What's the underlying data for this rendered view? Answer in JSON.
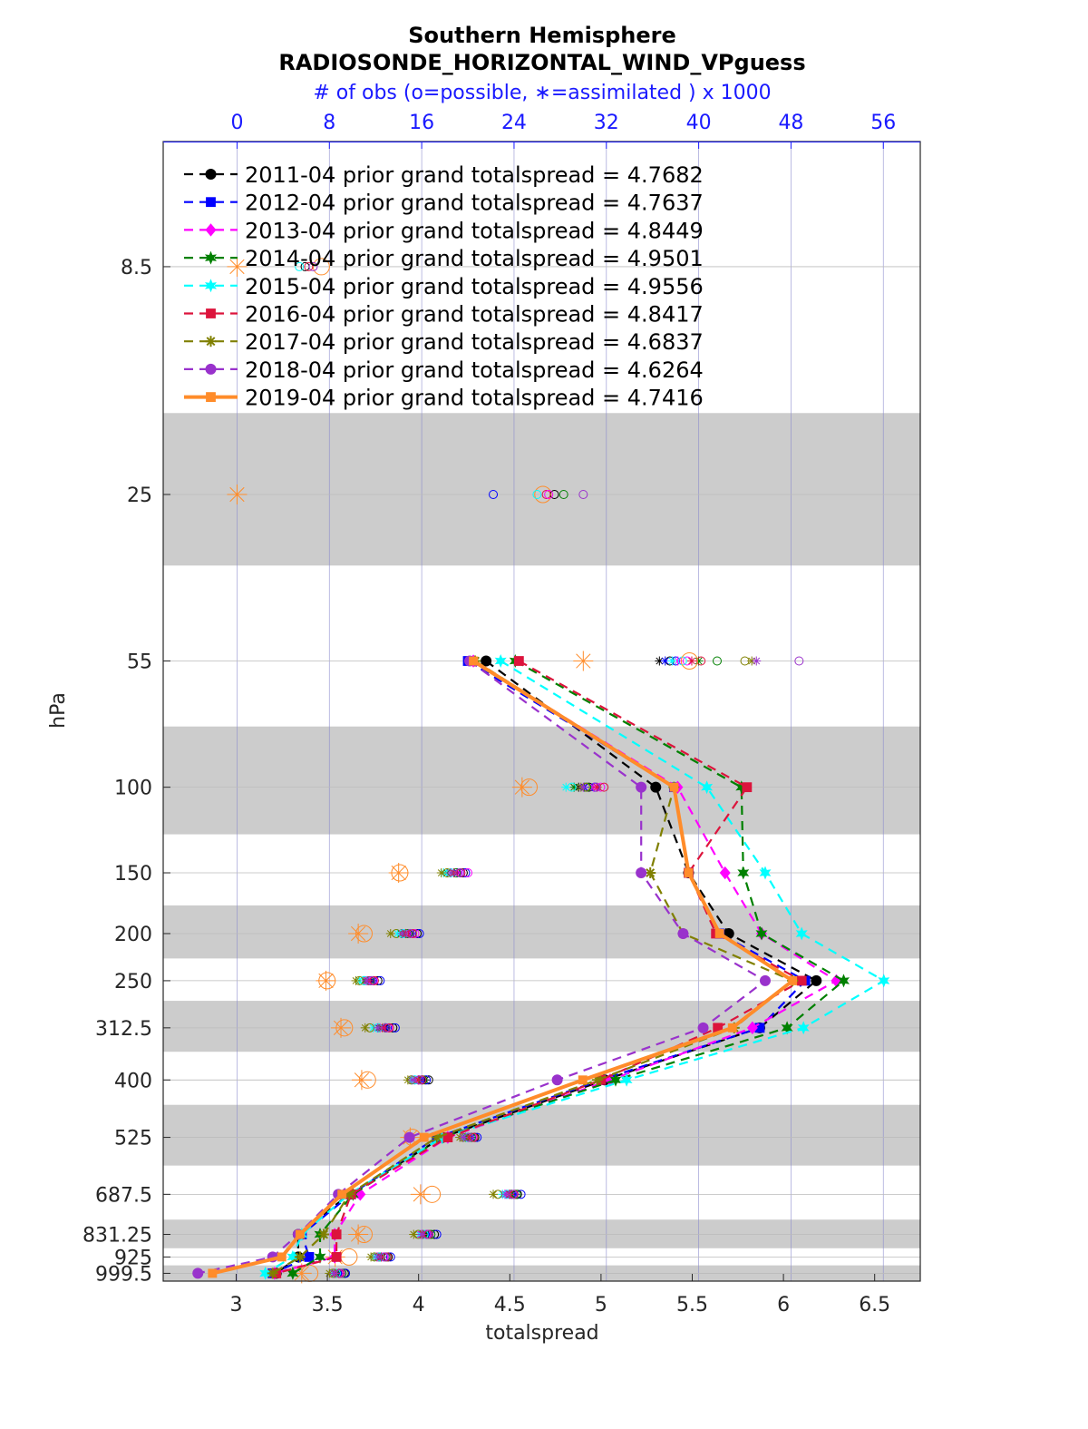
{
  "chart_data": {
    "type": "line",
    "title": "Southern Hemisphere",
    "subtitle": "RADIOSONDE_HORIZONTAL_WIND_VPguess",
    "top_axis_label": "# of obs (o=possible, ∗=assimilated ) x 1000",
    "xlabel": "totalspread",
    "ylabel": "hPa",
    "xlim": [
      2.6,
      6.75
    ],
    "top_xlim": [
      -6.4,
      59.2
    ],
    "x_ticks": [
      3,
      3.5,
      4,
      4.5,
      5,
      5.5,
      6,
      6.5
    ],
    "x_tick_labels": [
      "3",
      "3.5",
      "4",
      "4.5",
      "5",
      "5.5",
      "6",
      "6.5"
    ],
    "top_ticks": [
      0,
      8,
      16,
      24,
      32,
      40,
      48,
      56
    ],
    "top_tick_labels": [
      "0",
      "8",
      "16",
      "24",
      "32",
      "40",
      "48",
      "56"
    ],
    "levels": [
      8.5,
      25,
      55,
      100,
      150,
      200,
      250,
      312.5,
      400,
      525,
      687.5,
      831.25,
      925,
      999.5
    ],
    "level_labels": [
      "8.5",
      "25",
      "55",
      "100",
      "150",
      "200",
      "250",
      "312.5",
      "400",
      "525",
      "687.5",
      "831.25",
      "925",
      "999.5"
    ],
    "shaded_layers": [
      [
        17,
        35
      ],
      [
        75,
        125
      ],
      [
        175,
        225
      ],
      [
        275,
        350
      ],
      [
        450,
        600
      ],
      [
        775,
        887.5
      ],
      [
        962.5,
        1037
      ]
    ],
    "legend_location": "top-left",
    "series": [
      {
        "name": "2011-04",
        "label": "2011-04 prior grand totalspread = 4.7682",
        "color": "#000000",
        "marker": "circle",
        "style": "dashed",
        "values": [
          null,
          null,
          4.37,
          5.3,
          5.48,
          5.7,
          6.18,
          5.87,
          5.02,
          4.13,
          3.62,
          3.34,
          3.34,
          3.22
        ],
        "obs_possible": [
          null,
          null,
          37.5,
          30.5,
          19.6,
          15.6,
          12.2,
          13.5,
          16.6,
          20.6,
          24.3,
          17.1,
          13.1,
          9.3
        ],
        "obs_assimilated": [
          null,
          null,
          36.6,
          29.6,
          18.8,
          14.6,
          11.6,
          12.8,
          16.3,
          20.0,
          23.8,
          16.4,
          12.3,
          8.8
        ]
      },
      {
        "name": "2012-04",
        "label": "2012-04 prior grand totalspread = 4.7637",
        "color": "#0000ff",
        "marker": "square",
        "style": "dashed",
        "values": [
          null,
          null,
          4.27,
          5.4,
          5.48,
          5.65,
          6.12,
          5.87,
          5.0,
          4.1,
          3.63,
          3.36,
          3.4,
          3.2
        ],
        "obs_possible": [
          null,
          null,
          38.0,
          31.0,
          19.8,
          15.8,
          12.4,
          13.7,
          16.4,
          20.8,
          24.6,
          17.3,
          13.3,
          9.4
        ],
        "obs_assimilated": [
          null,
          null,
          37.1,
          30.1,
          19.1,
          15.0,
          11.8,
          12.9,
          16.0,
          20.3,
          24.1,
          16.6,
          12.5,
          8.9
        ]
      },
      {
        "name": "2013-04",
        "label": "2013-04 prior grand totalspread = 4.8449",
        "color": "#ff00ff",
        "marker": "diamond",
        "style": "dashed",
        "values": [
          null,
          null,
          4.3,
          5.42,
          5.68,
          5.88,
          6.29,
          5.83,
          5.05,
          4.16,
          3.68,
          3.54,
          3.54,
          3.21
        ],
        "obs_possible": [
          null,
          null,
          39.0,
          31.5,
          20.0,
          15.4,
          11.8,
          13.1,
          15.8,
          20.4,
          23.6,
          16.4,
          12.7,
          8.8
        ],
        "obs_assimilated": [
          null,
          null,
          38.2,
          30.9,
          19.3,
          14.8,
          11.3,
          12.4,
          15.4,
          19.9,
          23.2,
          15.9,
          12.1,
          8.4
        ]
      },
      {
        "name": "2014-04",
        "label": "2014-04 prior grand totalspread = 4.9501",
        "color": "#008000",
        "marker": "hexagram",
        "style": "dashed",
        "values": [
          null,
          null,
          4.53,
          5.77,
          5.78,
          5.88,
          6.33,
          6.02,
          5.08,
          4.13,
          3.64,
          3.46,
          3.46,
          3.31
        ],
        "obs_possible": [
          null,
          null,
          41.6,
          30.3,
          19.0,
          14.8,
          11.5,
          12.9,
          16.1,
          20.3,
          24.2,
          16.8,
          12.9,
          9.1
        ],
        "obs_assimilated": [
          null,
          null,
          40.0,
          29.2,
          18.2,
          14.2,
          11.0,
          12.3,
          15.7,
          19.8,
          23.7,
          16.2,
          12.4,
          8.6
        ]
      },
      {
        "name": "2015-04",
        "label": "2015-04 prior grand totalspread = 4.9556",
        "color": "#00ffff",
        "marker": "hexagram",
        "style": "dashed",
        "values": [
          null,
          null,
          4.45,
          5.58,
          5.9,
          6.1,
          6.55,
          6.11,
          5.14,
          4.13,
          3.62,
          3.36,
          3.31,
          3.16
        ],
        "obs_possible": [
          null,
          null,
          38.6,
          29.0,
          18.5,
          14.4,
          11.0,
          12.2,
          15.4,
          19.9,
          23.4,
          16.2,
          12.4,
          8.6
        ],
        "obs_assimilated": [
          null,
          null,
          37.7,
          28.5,
          17.9,
          13.9,
          10.6,
          11.8,
          15.1,
          19.6,
          23.0,
          15.8,
          11.9,
          8.3
        ]
      },
      {
        "name": "2016-04",
        "label": "2016-04 prior grand totalspread = 4.8417",
        "color": "#dc143c",
        "marker": "square",
        "style": "dashed",
        "values": [
          null,
          null,
          4.55,
          5.8,
          5.48,
          5.63,
          6.1,
          5.64,
          5.0,
          4.16,
          3.63,
          3.55,
          3.55,
          3.22
        ],
        "obs_possible": [
          null,
          null,
          40.2,
          31.8,
          19.4,
          15.2,
          11.9,
          13.2,
          16.0,
          20.5,
          24.0,
          16.6,
          13.0,
          8.9
        ],
        "obs_assimilated": [
          null,
          null,
          39.4,
          31.2,
          18.8,
          14.6,
          11.4,
          12.6,
          15.7,
          20.1,
          23.6,
          16.1,
          12.5,
          8.5
        ]
      },
      {
        "name": "2017-04",
        "label": "2017-04 prior grand totalspread = 4.6837",
        "color": "#808000",
        "marker": "asterisk",
        "style": "dashed",
        "values": [
          null,
          null,
          4.31,
          5.4,
          5.27,
          5.45,
          6.05,
          5.73,
          4.98,
          4.1,
          3.62,
          3.48,
          3.35,
          3.2
        ],
        "obs_possible": [
          null,
          null,
          44.0,
          30.2,
          18.2,
          13.8,
          10.6,
          11.5,
          15.1,
          19.6,
          22.6,
          15.7,
          11.9,
          8.3
        ],
        "obs_assimilated": [
          null,
          null,
          44.6,
          29.8,
          17.7,
          13.3,
          10.3,
          11.1,
          14.8,
          19.3,
          22.2,
          15.3,
          11.6,
          8.0
        ]
      },
      {
        "name": "2018-04",
        "label": "2018-04 prior grand totalspread = 4.6264",
        "color": "#9932cc",
        "marker": "circle",
        "style": "dashed",
        "values": [
          null,
          null,
          4.28,
          5.22,
          5.22,
          5.45,
          5.9,
          5.56,
          4.76,
          3.95,
          3.56,
          3.34,
          3.2,
          2.79
        ],
        "obs_possible": [
          null,
          null,
          48.7,
          31.1,
          19.3,
          15.0,
          11.6,
          12.9,
          15.8,
          20.1,
          23.9,
          16.5,
          12.8,
          9.0
        ],
        "obs_assimilated": [
          null,
          null,
          45.0,
          30.0,
          18.5,
          14.3,
          11.2,
          12.2,
          15.2,
          19.6,
          23.3,
          16.0,
          12.2,
          8.4
        ]
      },
      {
        "name": "2019-04",
        "label": "2019-04 prior grand totalspread = 4.7416",
        "color": "#ff8c2a",
        "marker": "square",
        "style": "solid",
        "values": [
          null,
          null,
          4.3,
          5.4,
          5.48,
          5.65,
          6.05,
          5.72,
          4.9,
          4.03,
          3.58,
          3.35,
          3.25,
          2.87
        ],
        "obs_possible": [
          7.3,
          26.5,
          39.2,
          25.3,
          14.1,
          11.0,
          7.8,
          9.3,
          11.3,
          15.2,
          16.9,
          11.0,
          9.7,
          6.3
        ],
        "obs_assimilated": [
          0.0,
          0.0,
          30.0,
          24.7,
          14.0,
          10.5,
          7.7,
          9.0,
          10.8,
          15.0,
          15.9,
          10.5,
          8.5,
          5.6
        ]
      }
    ],
    "high_level_obs": [
      {
        "series": "2011-04",
        "level": 8.5,
        "possible": 5.9
      },
      {
        "series": "2015-04",
        "level": 8.5,
        "possible": 5.4
      },
      {
        "series": "2016-04",
        "level": 8.5,
        "possible": 6.2
      },
      {
        "series": "2018-04",
        "level": 8.5,
        "possible": 6.6
      },
      {
        "series": "2011-04",
        "level": 25,
        "possible": 27.5
      },
      {
        "series": "2012-04",
        "level": 25,
        "possible": 22.2
      },
      {
        "series": "2014-04",
        "level": 25,
        "possible": 28.3
      },
      {
        "series": "2015-04",
        "level": 25,
        "possible": 26.0
      },
      {
        "series": "2016-04",
        "level": 25,
        "possible": 26.8
      },
      {
        "series": "2018-04",
        "level": 25,
        "possible": 30.0
      },
      {
        "series": "2013-04",
        "level": 25,
        "possible": 27.0
      }
    ]
  }
}
